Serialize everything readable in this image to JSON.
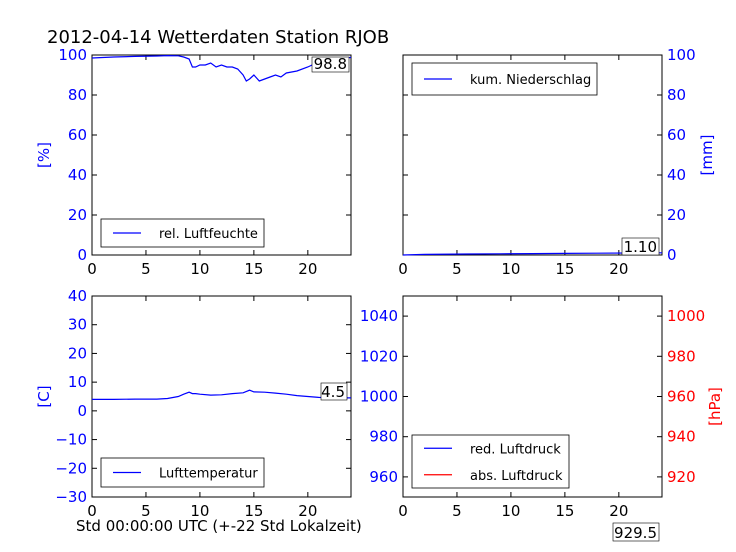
{
  "title": "2012-04-14 Wetterdaten Station RJOB",
  "xlabel": "Std 00:00:00 UTC (+-22 Std Lokalzeit)",
  "colors": {
    "primary": "#0000ff",
    "secondary": "#ff0000",
    "text": "#000000"
  },
  "chart_data": [
    {
      "type": "line",
      "ylabel": "[%]",
      "xlim": [
        0,
        24
      ],
      "ylim": [
        0,
        100
      ],
      "xticks": [
        0,
        5,
        10,
        15,
        20
      ],
      "yticks": [
        0,
        20,
        40,
        60,
        80,
        100
      ],
      "legend": "lower-left",
      "annotation": "98.8",
      "series": [
        {
          "name": "rel. Luftfeuchte",
          "color": "#0000ff",
          "x": [
            0,
            2,
            4,
            6,
            7,
            8,
            8.5,
            9,
            9.3,
            9.6,
            10,
            10.5,
            11,
            11.5,
            12,
            12.5,
            13,
            13.5,
            14,
            14.3,
            14.6,
            15,
            15.5,
            16,
            16.5,
            17,
            17.5,
            18,
            19,
            20,
            21,
            22,
            23,
            24
          ],
          "y": [
            98.5,
            99,
            99.3,
            99.5,
            99.7,
            99.6,
            99,
            98,
            94,
            94,
            95,
            95,
            96,
            94,
            95,
            94,
            94,
            93,
            90,
            87,
            88,
            90,
            87,
            88,
            89,
            90,
            89,
            91,
            92,
            94,
            96.5,
            97.5,
            98,
            98.8
          ]
        }
      ]
    },
    {
      "type": "line",
      "ylabel": "[mm]",
      "xlim": [
        0,
        24
      ],
      "ylim": [
        0,
        100
      ],
      "xticks": [
        0,
        5,
        10,
        15,
        20
      ],
      "yticks": [
        0,
        20,
        40,
        60,
        80,
        100
      ],
      "yaxis_side": "right",
      "legend": "upper-left",
      "annotation": "1.10",
      "series": [
        {
          "name": "kum. Niederschlag",
          "color": "#0000ff",
          "x": [
            0,
            2,
            6,
            9,
            12,
            15,
            18,
            21,
            24
          ],
          "y": [
            0,
            0.3,
            0.5,
            0.6,
            0.7,
            0.8,
            0.9,
            1.0,
            1.1
          ]
        }
      ]
    },
    {
      "type": "line",
      "ylabel": "[C]",
      "xlim": [
        0,
        24
      ],
      "ylim": [
        -30,
        40
      ],
      "xticks": [
        0,
        5,
        10,
        15,
        20
      ],
      "yticks": [
        -30,
        -20,
        -10,
        0,
        10,
        20,
        30,
        40
      ],
      "legend": "lower-left",
      "annotation": "4.5",
      "series": [
        {
          "name": "Lufttemperatur",
          "color": "#0000ff",
          "x": [
            0,
            2,
            4,
            6,
            7,
            8,
            8.5,
            9,
            9.3,
            9.6,
            10,
            11,
            12,
            13,
            14,
            14.6,
            15,
            16,
            17,
            18,
            19,
            20,
            21,
            22,
            23,
            24
          ],
          "y": [
            4,
            4,
            4.1,
            4.1,
            4.3,
            5,
            5.8,
            6.5,
            6,
            6,
            5.8,
            5.5,
            5.6,
            6,
            6.3,
            7.2,
            6.6,
            6.5,
            6.2,
            5.8,
            5.3,
            5,
            4.7,
            4.6,
            4.5,
            4.5
          ]
        }
      ]
    },
    {
      "type": "line",
      "ylabel_right": "[hPa]",
      "xlim": [
        0,
        24
      ],
      "ylim_left": [
        950,
        1050
      ],
      "ylim_right": [
        910,
        1010
      ],
      "xticks": [
        0,
        5,
        10,
        15,
        20
      ],
      "yticks_left": [
        960,
        980,
        1000,
        1020,
        1040
      ],
      "yticks_right": [
        920,
        940,
        960,
        980,
        1000
      ],
      "legend": "lower-left",
      "annotation": "929.5",
      "series": [
        {
          "name": "red. Luftdruck",
          "color": "#0000ff",
          "x": [],
          "y": []
        },
        {
          "name": "abs. Luftdruck",
          "color": "#ff0000",
          "x": [],
          "y": []
        }
      ]
    }
  ]
}
